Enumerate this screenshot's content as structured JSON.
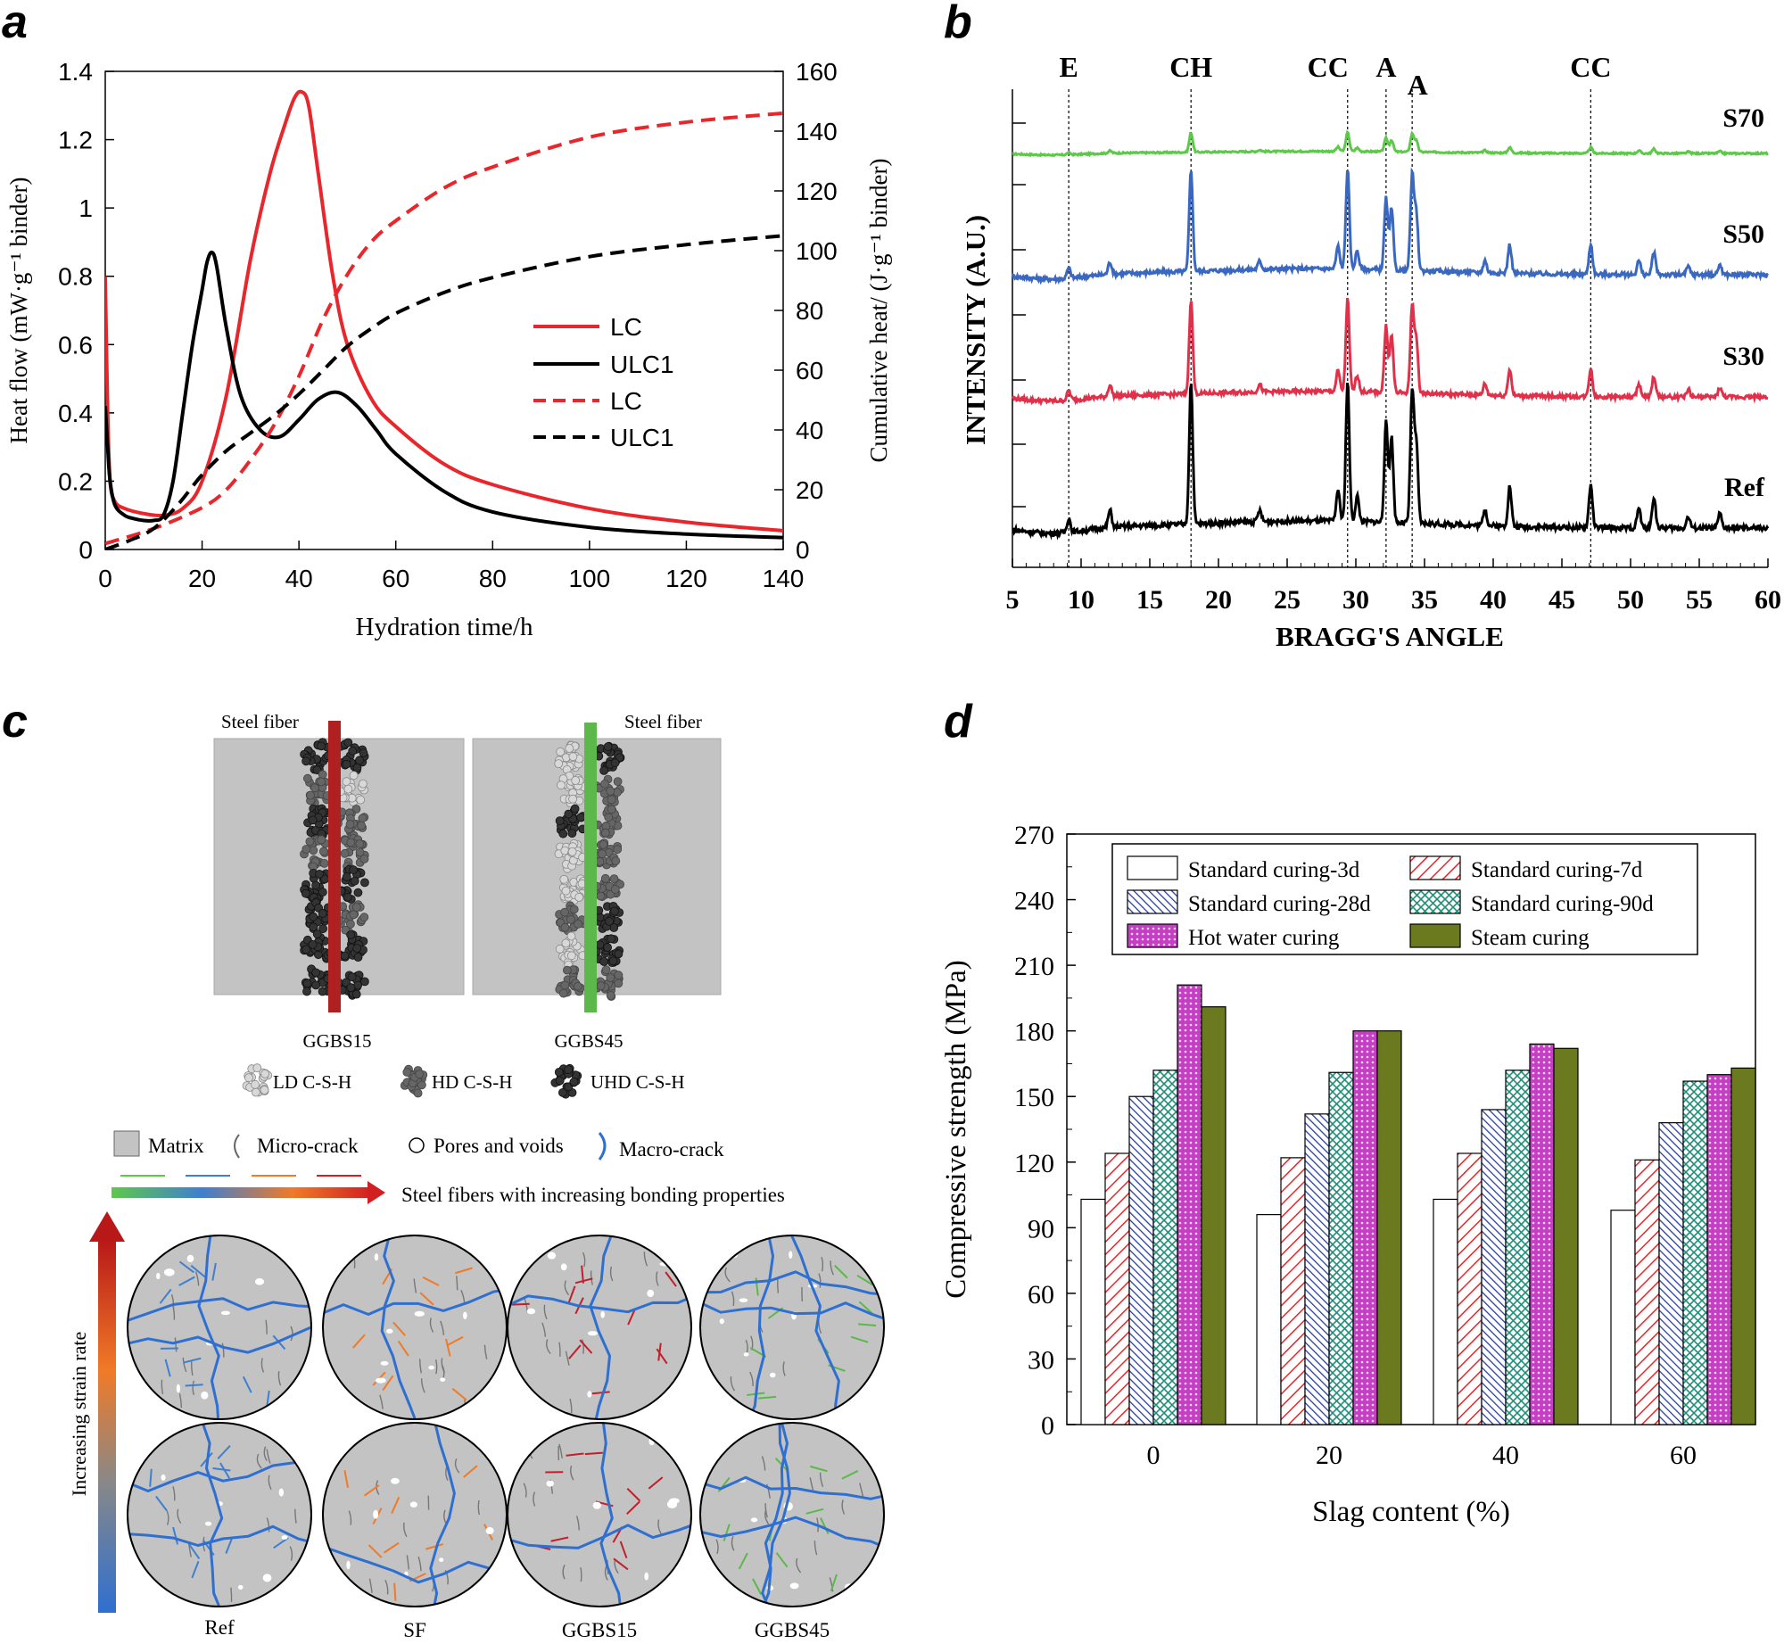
{
  "panels": {
    "a": "a",
    "b": "b",
    "c": "c",
    "d": "d"
  },
  "colors": {
    "red": "#e8262b",
    "black": "#000000",
    "green": "#5ec84a",
    "blue": "#3a68c0",
    "crimson": "#e0304a",
    "olive": "#6b7a1e",
    "magenta": "#c43fc4",
    "matrix": "#c3c3c3"
  },
  "chart_data": [
    {
      "id": "a",
      "type": "line",
      "xlabel": "Hydration time/h",
      "ylabel_left": "Heat flow (mW·g⁻¹ binder)",
      "ylabel_right": "Cumulative heat/ (J·g⁻¹ binder)",
      "xlim": [
        0,
        140
      ],
      "ylim_left": [
        0,
        1.4
      ],
      "ylim_right": [
        0,
        160
      ],
      "xticks": [
        "0",
        "20",
        "40",
        "60",
        "80",
        "100",
        "120",
        "140"
      ],
      "yticks_left": [
        "0",
        "0.2",
        "0.4",
        "0.6",
        "0.8",
        "1",
        "1.2",
        "1.4"
      ],
      "yticks_right": [
        "0",
        "20",
        "40",
        "60",
        "80",
        "100",
        "120",
        "140",
        "160"
      ],
      "legend": [
        "LC",
        "ULC1",
        "LC",
        "ULC1"
      ],
      "series": [
        {
          "name": "LC",
          "axis": "left",
          "style": "solid",
          "color": "red",
          "x": [
            0,
            0.5,
            1,
            2,
            4,
            8,
            12,
            16,
            20,
            25,
            30,
            34,
            37,
            39,
            40.5,
            42,
            44,
            47,
            50,
            55,
            60,
            70,
            80,
            100,
            120,
            140
          ],
          "y": [
            0.8,
            0.4,
            0.2,
            0.14,
            0.12,
            0.105,
            0.1,
            0.12,
            0.2,
            0.45,
            0.85,
            1.1,
            1.24,
            1.32,
            1.34,
            1.3,
            1.1,
            0.8,
            0.6,
            0.44,
            0.36,
            0.25,
            0.19,
            0.12,
            0.08,
            0.055
          ]
        },
        {
          "name": "ULC1",
          "axis": "left",
          "style": "solid",
          "color": "black",
          "x": [
            0,
            0.5,
            1,
            2,
            4,
            6,
            8,
            10,
            12,
            14,
            16,
            18,
            20,
            21,
            22,
            23,
            25,
            28,
            32,
            36,
            40,
            44,
            48,
            52,
            56,
            60,
            70,
            80,
            100,
            120,
            140
          ],
          "y": [
            0.42,
            0.3,
            0.2,
            0.13,
            0.1,
            0.09,
            0.085,
            0.085,
            0.1,
            0.2,
            0.4,
            0.6,
            0.76,
            0.84,
            0.87,
            0.83,
            0.65,
            0.45,
            0.35,
            0.33,
            0.38,
            0.44,
            0.46,
            0.42,
            0.35,
            0.28,
            0.17,
            0.11,
            0.065,
            0.045,
            0.035
          ]
        },
        {
          "name": "LC",
          "axis": "right",
          "style": "dashed",
          "color": "red",
          "x": [
            0,
            10,
            20,
            25,
            30,
            35,
            40,
            45,
            50,
            55,
            60,
            70,
            80,
            100,
            120,
            140
          ],
          "y": [
            2,
            7,
            14,
            20,
            30,
            42,
            58,
            77,
            92,
            103,
            110,
            121,
            128,
            138,
            143,
            146
          ]
        },
        {
          "name": "ULC1",
          "axis": "right",
          "style": "dashed",
          "color": "black",
          "x": [
            0,
            5,
            10,
            15,
            20,
            25,
            30,
            35,
            40,
            45,
            50,
            55,
            60,
            70,
            80,
            100,
            120,
            140
          ],
          "y": [
            0,
            3,
            7,
            15,
            25,
            33,
            39,
            45,
            52,
            60,
            68,
            74,
            79,
            86,
            91,
            98,
            102,
            105
          ]
        }
      ]
    },
    {
      "id": "b",
      "type": "line",
      "title": "",
      "xlabel": "BRAGG'S ANGLE",
      "ylabel": "INTENSITY (A.U.)",
      "xlim": [
        5,
        60
      ],
      "xticks": [
        "5",
        "10",
        "15",
        "20",
        "25",
        "30",
        "35",
        "40",
        "45",
        "50",
        "55",
        "60"
      ],
      "phase_labels": [
        {
          "text": "E",
          "x": 9.1
        },
        {
          "text": "CH",
          "x": 18.0
        },
        {
          "text": "CC",
          "x": 29.4
        },
        {
          "text": "A",
          "x": 32.2
        },
        {
          "text": "A",
          "x": 34.1
        },
        {
          "text": "CC",
          "x": 47.1
        }
      ],
      "peaks": [
        {
          "x": 9.1,
          "h": 0.1
        },
        {
          "x": 12.1,
          "h": 0.12
        },
        {
          "x": 18.0,
          "h": 1.0
        },
        {
          "x": 23.0,
          "h": 0.08
        },
        {
          "x": 28.7,
          "h": 0.22
        },
        {
          "x": 29.4,
          "h": 0.98
        },
        {
          "x": 30.1,
          "h": 0.18
        },
        {
          "x": 32.2,
          "h": 0.7
        },
        {
          "x": 32.6,
          "h": 0.6
        },
        {
          "x": 34.1,
          "h": 0.92
        },
        {
          "x": 34.4,
          "h": 0.55
        },
        {
          "x": 39.4,
          "h": 0.12
        },
        {
          "x": 41.2,
          "h": 0.28
        },
        {
          "x": 47.1,
          "h": 0.3
        },
        {
          "x": 50.6,
          "h": 0.14
        },
        {
          "x": 51.7,
          "h": 0.22
        },
        {
          "x": 54.2,
          "h": 0.08
        },
        {
          "x": 56.5,
          "h": 0.1
        }
      ],
      "series": [
        {
          "name": "S70",
          "color": "green",
          "scale": 0.45
        },
        {
          "name": "S50",
          "color": "blue",
          "scale": 0.85
        },
        {
          "name": "S30",
          "color": "crimson",
          "scale": 0.85
        },
        {
          "name": "Ref",
          "color": "black",
          "scale": 1.0
        }
      ]
    },
    {
      "id": "d",
      "type": "bar",
      "xlabel": "Slag content (%)",
      "ylabel": "Compressive strength (MPa)",
      "ylim": [
        0,
        270
      ],
      "yticks": [
        "0",
        "30",
        "60",
        "90",
        "120",
        "150",
        "180",
        "210",
        "240",
        "270"
      ],
      "categories": [
        "0",
        "20",
        "40",
        "60"
      ],
      "series": [
        {
          "name": "Standard curing-3d",
          "values": [
            103,
            96,
            103,
            98
          ],
          "pattern": "plain"
        },
        {
          "name": "Standard curing-7d",
          "values": [
            124,
            122,
            124,
            121
          ],
          "pattern": "diag-red"
        },
        {
          "name": "Standard curing-28d",
          "values": [
            150,
            142,
            144,
            138
          ],
          "pattern": "diag-blue"
        },
        {
          "name": "Standard curing-90d",
          "values": [
            162,
            161,
            162,
            157
          ],
          "pattern": "cross-teal"
        },
        {
          "name": "Hot water curing",
          "values": [
            201,
            180,
            174,
            160
          ],
          "pattern": "dots-magenta"
        },
        {
          "name": "Steam curing",
          "values": [
            191,
            180,
            172,
            163
          ],
          "pattern": "solid-olive"
        }
      ]
    }
  ],
  "diagram_c": {
    "steel_fiber_label_left": "Steel fiber",
    "steel_fiber_label_right": "Steel fiber",
    "box_labels": [
      "GGBS15",
      "GGBS45"
    ],
    "csh_legend": [
      "LD C-S-H",
      "HD C-S-H",
      "UHD C-S-H"
    ],
    "legend_items": [
      "Matrix",
      "Micro-crack",
      "Pores and voids",
      "Macro-crack"
    ],
    "fiber_arrow_label": "Steel fibers with increasing bonding properties",
    "strain_label": "Increasing strain rate",
    "circle_labels": [
      "Ref",
      "SF",
      "GGBS15",
      "GGBS45"
    ]
  }
}
